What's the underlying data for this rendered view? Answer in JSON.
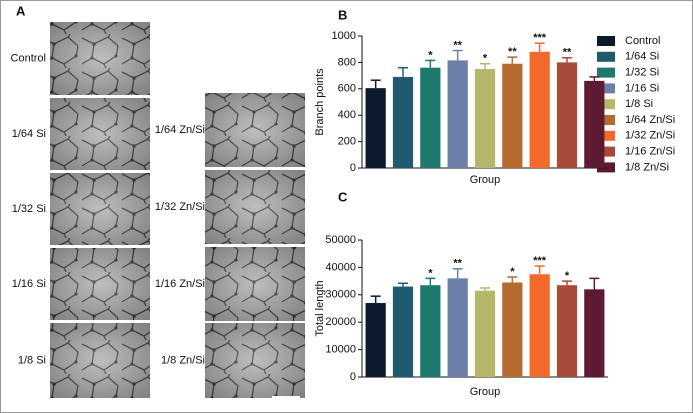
{
  "panel_a": {
    "label": "A",
    "left": [
      "Control",
      "1/64 Si",
      "1/32 Si",
      "1/16 Si",
      "1/8 Si"
    ],
    "right": [
      "1/64 Zn/Si",
      "1/32 Zn/Si",
      "1/16 Zn/Si",
      "1/8 Zn/Si"
    ]
  },
  "groups": {
    "names": [
      "Control",
      "1/64 Si",
      "1/32 Si",
      "1/16 Si",
      "1/8 Si",
      "1/64 Zn/Si",
      "1/32 Zn/Si",
      "1/16 Zn/Si",
      "1/8 Zn/Si"
    ],
    "colors": [
      "#0d1b2e",
      "#1f5a6e",
      "#1e7a6c",
      "#6b7fa8",
      "#b5b86a",
      "#b56a30",
      "#f26a2a",
      "#a84a3a",
      "#5e1a33"
    ]
  },
  "chart_data": [
    {
      "type": "bar",
      "panel_label": "B",
      "y_label": "Branch points",
      "x_label": "Group",
      "values": [
        605,
        690,
        760,
        815,
        750,
        790,
        880,
        800,
        660
      ],
      "errors": [
        60,
        70,
        55,
        75,
        40,
        50,
        65,
        35,
        30
      ],
      "annotations": [
        null,
        null,
        "*",
        "**",
        "*",
        "**",
        "***",
        "**",
        null
      ],
      "ylim": [
        0,
        1000
      ],
      "yticks": [
        0,
        200,
        400,
        600,
        800,
        1000
      ]
    },
    {
      "type": "bar",
      "panel_label": "C",
      "y_label": "Total length",
      "x_label": "Group",
      "values": [
        27000,
        33000,
        33500,
        36000,
        31500,
        34500,
        37500,
        33500,
        32000
      ],
      "errors": [
        2500,
        1200,
        2500,
        3500,
        1000,
        2000,
        3000,
        1500,
        4000
      ],
      "annotations": [
        null,
        null,
        "*",
        "**",
        null,
        "*",
        "***",
        "*",
        null
      ],
      "ylim": [
        0,
        50000
      ],
      "yticks": [
        0,
        10000,
        20000,
        30000,
        40000,
        50000
      ]
    }
  ]
}
